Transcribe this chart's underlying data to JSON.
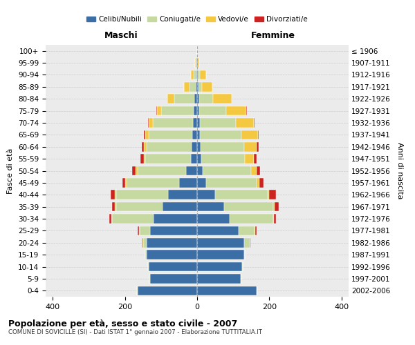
{
  "age_groups": [
    "0-4",
    "5-9",
    "10-14",
    "15-19",
    "20-24",
    "25-29",
    "30-34",
    "35-39",
    "40-44",
    "45-49",
    "50-54",
    "55-59",
    "60-64",
    "65-69",
    "70-74",
    "75-79",
    "80-84",
    "85-89",
    "90-94",
    "95-99",
    "100+"
  ],
  "birth_years": [
    "2002-2006",
    "1997-2001",
    "1992-1996",
    "1987-1991",
    "1982-1986",
    "1977-1981",
    "1972-1976",
    "1967-1971",
    "1962-1966",
    "1957-1961",
    "1952-1956",
    "1947-1951",
    "1942-1946",
    "1937-1941",
    "1932-1936",
    "1927-1931",
    "1922-1926",
    "1917-1921",
    "1912-1916",
    "1907-1911",
    "≤ 1906"
  ],
  "maschi": {
    "celibi": [
      165,
      130,
      135,
      140,
      140,
      130,
      120,
      95,
      80,
      50,
      30,
      18,
      15,
      14,
      12,
      10,
      8,
      4,
      2,
      1,
      0
    ],
    "coniugati": [
      2,
      2,
      2,
      3,
      10,
      30,
      115,
      130,
      145,
      145,
      135,
      125,
      125,
      120,
      110,
      90,
      55,
      18,
      8,
      2,
      0
    ],
    "vedovi": [
      0,
      0,
      0,
      0,
      1,
      2,
      3,
      3,
      4,
      4,
      5,
      5,
      8,
      10,
      12,
      12,
      20,
      15,
      8,
      2,
      0
    ],
    "divorziati": [
      0,
      0,
      0,
      0,
      2,
      2,
      5,
      8,
      10,
      8,
      10,
      10,
      5,
      3,
      2,
      2,
      0,
      0,
      0,
      0,
      0
    ]
  },
  "femmine": {
    "nubili": [
      165,
      120,
      125,
      130,
      130,
      115,
      90,
      75,
      50,
      25,
      15,
      12,
      10,
      8,
      8,
      6,
      5,
      3,
      2,
      1,
      0
    ],
    "coniugate": [
      2,
      2,
      2,
      3,
      15,
      45,
      120,
      135,
      145,
      140,
      135,
      120,
      120,
      115,
      100,
      75,
      40,
      10,
      5,
      1,
      0
    ],
    "vedove": [
      0,
      0,
      0,
      0,
      1,
      2,
      3,
      4,
      5,
      8,
      15,
      25,
      35,
      45,
      50,
      55,
      50,
      30,
      18,
      3,
      0
    ],
    "divorziate": [
      0,
      0,
      0,
      0,
      1,
      2,
      5,
      12,
      18,
      12,
      10,
      8,
      5,
      3,
      2,
      2,
      0,
      0,
      0,
      0,
      0
    ]
  },
  "colors": {
    "celibi": "#3a6ea5",
    "coniugati": "#c5d9a0",
    "vedovi": "#f5c842",
    "divorziati": "#cc2222"
  },
  "xlim": 420,
  "title": "Popolazione per età, sesso e stato civile - 2007",
  "subtitle": "COMUNE DI SOVICILLE (SI) - Dati ISTAT 1° gennaio 2007 - Elaborazione TUTTITALIA.IT",
  "xlabel_left": "Maschi",
  "xlabel_right": "Femmine",
  "ylabel_left": "Fasce di età",
  "ylabel_right": "Anni di nascita",
  "legend_labels": [
    "Celibi/Nubili",
    "Coniugati/e",
    "Vedovi/e",
    "Divorziati/e"
  ],
  "bg_color": "#ffffff",
  "plot_bg_color": "#ebebeb",
  "grid_color": "#cccccc"
}
